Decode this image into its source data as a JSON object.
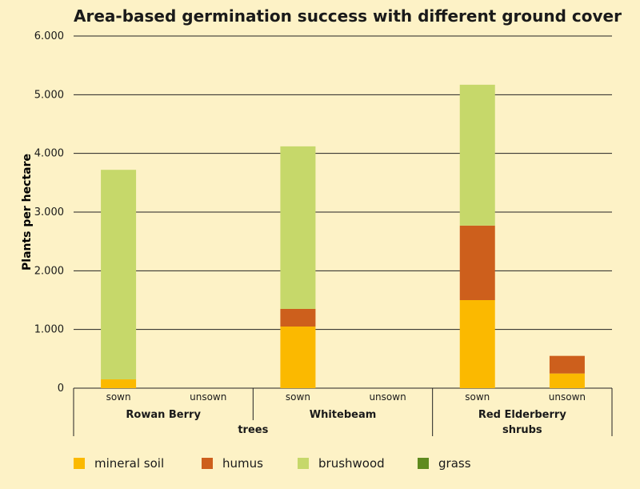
{
  "chart_data": {
    "type": "bar",
    "stacked": true,
    "title": "Area-based germination success with different ground cover",
    "ylabel": "Plants per hectare",
    "xlabel": "",
    "ylim": [
      0,
      6000
    ],
    "yticks": [
      0,
      1000,
      2000,
      3000,
      4000,
      5000,
      6000
    ],
    "ytick_labels": [
      "0",
      "1.000",
      "2.000",
      "3.000",
      "4.000",
      "5.000",
      "6.000"
    ],
    "grid": true,
    "legend_position": "bottom",
    "categories": [
      "sown",
      "unsown",
      "sown",
      "unsown",
      "sown",
      "unsown"
    ],
    "groups": [
      {
        "label": "Rowan Berry",
        "span": [
          0,
          1
        ]
      },
      {
        "label": "Whitebeam",
        "span": [
          2,
          3
        ]
      },
      {
        "label": "Red Elderberry",
        "span": [
          4,
          5
        ]
      }
    ],
    "supergroups": [
      {
        "label": "trees",
        "span": [
          0,
          3
        ]
      },
      {
        "label": "shrubs",
        "span": [
          4,
          5
        ]
      }
    ],
    "series": [
      {
        "name": "mineral soil",
        "color": "#fbb900",
        "values": [
          150,
          0,
          1050,
          0,
          1500,
          250
        ]
      },
      {
        "name": "humus",
        "color": "#cd5f1c",
        "values": [
          0,
          0,
          300,
          0,
          1270,
          300
        ]
      },
      {
        "name": "brushwood",
        "color": "#c6d86a",
        "values": [
          3570,
          0,
          2770,
          0,
          2400,
          0
        ]
      },
      {
        "name": "grass",
        "color": "#5e8a1e",
        "values": [
          0,
          0,
          0,
          0,
          0,
          0
        ]
      }
    ]
  }
}
